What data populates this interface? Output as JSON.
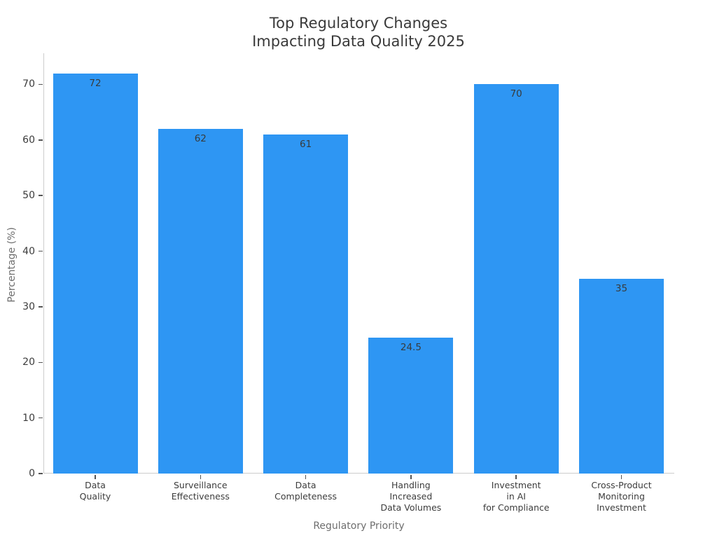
{
  "figure": {
    "title": "Top Regulatory Changes\nImpacting Data Quality 2025",
    "xlabel": "Regulatory Priority",
    "ylabel": "Percentage (%)"
  },
  "colors": {
    "bar": "#2e96f3",
    "title_text": "#3a3a3a",
    "tick_label_text": "#3c3c3c",
    "axis_label_text": "#6e6e6e",
    "value_label_text": "#373b3d",
    "spine": "#cccccc",
    "tick_mark": "#555555",
    "background": "#ffffff"
  },
  "chart_data": {
    "type": "bar",
    "title": "Top Regulatory Changes Impacting Data Quality 2025",
    "xlabel": "Regulatory Priority",
    "ylabel": "Percentage (%)",
    "categories": [
      "Data\nQuality",
      "Surveillance\nEffectiveness",
      "Data\nCompleteness",
      "Handling\nIncreased\nData Volumes",
      "Investment\nin AI\nfor Compliance",
      "Cross-Product\nMonitoring\nInvestment"
    ],
    "values": [
      72,
      62,
      61,
      24.5,
      70,
      35
    ],
    "value_labels": [
      "72",
      "62",
      "61",
      "24.5",
      "70",
      "35"
    ],
    "bar_color": "#2e96f3",
    "ylim": [
      0,
      75.6
    ],
    "yticks": [
      0,
      10,
      20,
      30,
      40,
      50,
      60,
      70
    ],
    "grid": false,
    "legend": false
  }
}
